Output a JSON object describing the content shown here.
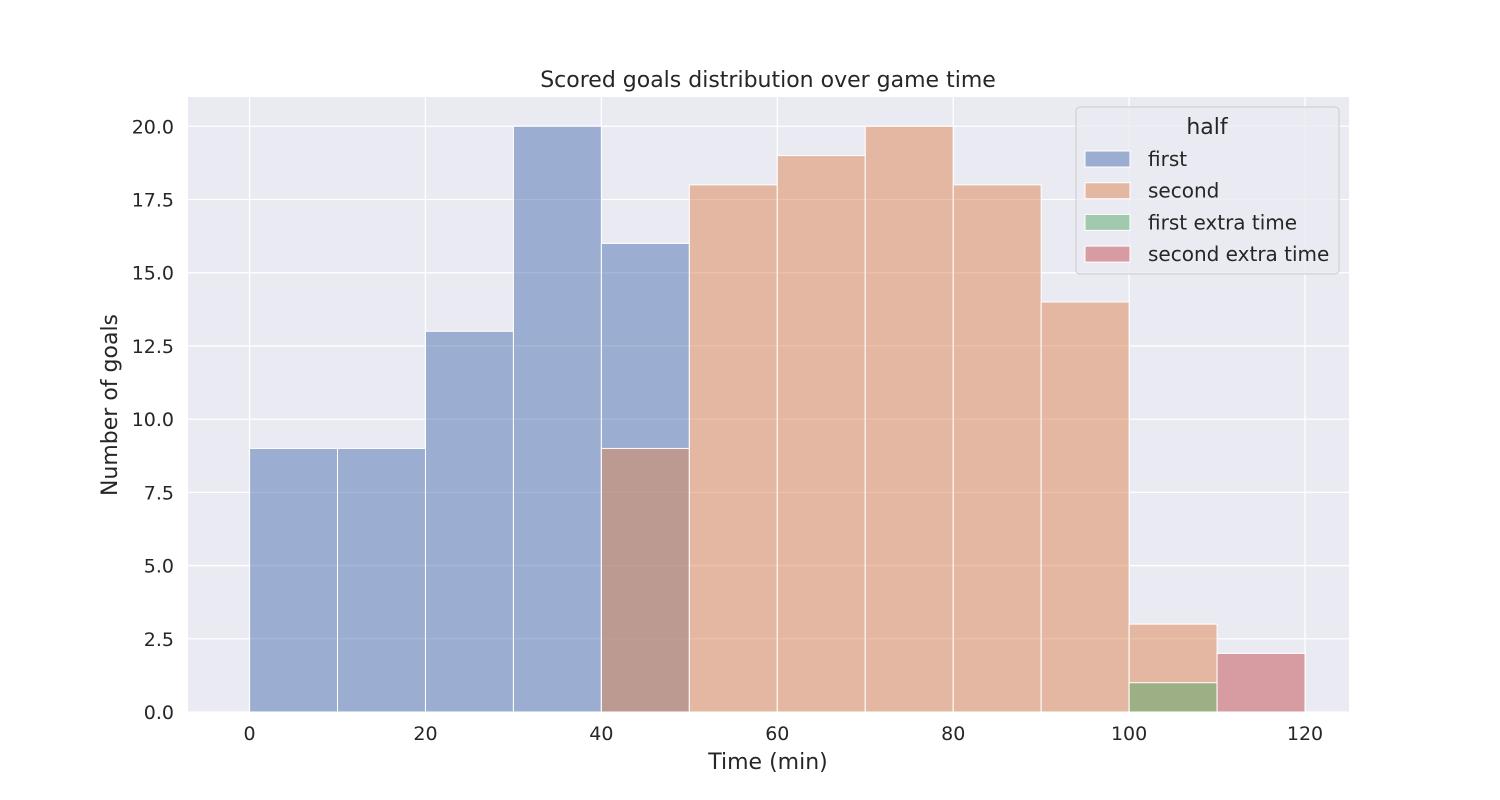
{
  "chart_data": {
    "type": "bar",
    "title": "Scored goals distribution over game time",
    "xlabel": "Time (min)",
    "ylabel": "Number of goals",
    "xlim": [
      -7,
      125
    ],
    "ylim": [
      0,
      21
    ],
    "xticks": [
      0,
      20,
      40,
      60,
      80,
      100,
      120
    ],
    "xtick_labels": [
      "0",
      "20",
      "40",
      "60",
      "80",
      "100",
      "120"
    ],
    "yticks": [
      0,
      2.5,
      5,
      7.5,
      10,
      12.5,
      15,
      17.5,
      20
    ],
    "ytick_labels": [
      "0.0",
      "2.5",
      "5.0",
      "7.5",
      "10.0",
      "12.5",
      "15.0",
      "17.5",
      "20.0"
    ],
    "grid": true,
    "bin_edges": [
      0,
      10,
      20,
      30,
      40,
      50,
      60,
      70,
      80,
      90,
      100,
      110,
      120
    ],
    "legend": {
      "title": "half",
      "placement": "top-right"
    },
    "series": [
      {
        "name": "first",
        "color": "#4c72b0",
        "values": [
          9,
          9,
          13,
          20,
          16,
          0,
          0,
          0,
          0,
          0,
          0,
          0
        ]
      },
      {
        "name": "second",
        "color": "#dd8452",
        "values": [
          0,
          0,
          0,
          0,
          9,
          18,
          19,
          20,
          18,
          14,
          3,
          0
        ]
      },
      {
        "name": "first extra time",
        "color": "#55a868",
        "values": [
          0,
          0,
          0,
          0,
          0,
          0,
          0,
          0,
          0,
          0,
          1,
          0
        ]
      },
      {
        "name": "second extra time",
        "color": "#c44e52",
        "values": [
          0,
          0,
          0,
          0,
          0,
          0,
          0,
          0,
          0,
          0,
          0,
          2
        ]
      }
    ],
    "plot_background": "#eaeaf2"
  }
}
